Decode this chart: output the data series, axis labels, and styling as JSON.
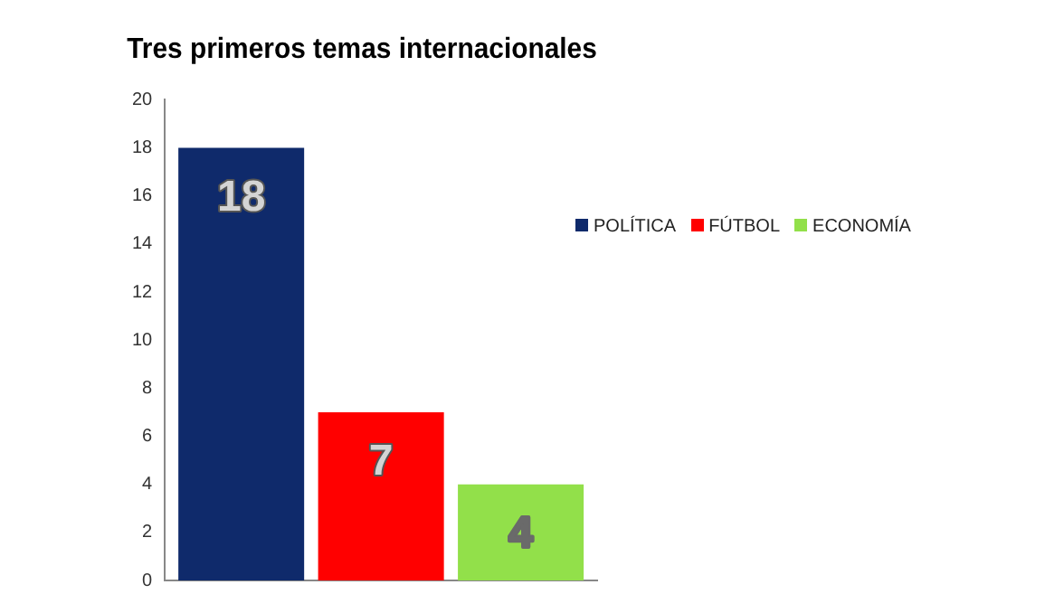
{
  "chart_data": {
    "type": "bar",
    "title": "Tres primeros temas internacionales",
    "categories": [
      null
    ],
    "series": [
      {
        "name": "POLÍTICA",
        "color": "#0f2a6b",
        "values": [
          18
        ]
      },
      {
        "name": "FÚTBOL",
        "color": "#ff0000",
        "values": [
          7
        ]
      },
      {
        "name": "ECONOMÍA",
        "color": "#92e04a",
        "values": [
          4
        ]
      }
    ],
    "ylim": [
      0,
      20
    ],
    "yticks": [
      0,
      2,
      4,
      6,
      8,
      10,
      12,
      14,
      16,
      18,
      20
    ],
    "grid": false,
    "legend": "right",
    "data_labels": true
  }
}
